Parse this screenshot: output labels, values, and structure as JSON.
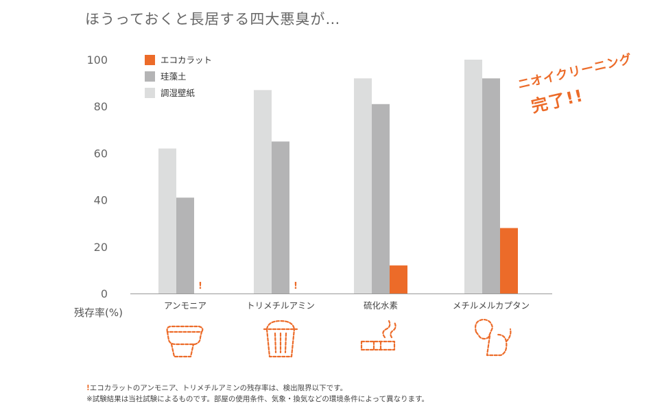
{
  "title": "ほうっておくと長居する四大悪臭が…",
  "stamp": {
    "line1": "ニオイクリーニング",
    "line2": "完了!!"
  },
  "notes": {
    "mark": "!",
    "line1": "エコカラットのアンモニア、トリメチルアミンの残存率は、検出限界以下です。",
    "line2": "※試験結果は当社試験によるものです。部屋の使用条件、気象・換気などの環境条件によって異なります。"
  },
  "chart_data": {
    "type": "bar",
    "ylabel": "残存率(%)",
    "ylim": [
      0,
      100
    ],
    "yticks": [
      0,
      20,
      40,
      60,
      80,
      100
    ],
    "grid": false,
    "legend_position": "top-left",
    "categories": [
      "アンモニア",
      "トリメチルアミン",
      "硫化水素",
      "メチルメルカプタン"
    ],
    "category_icons": [
      "toilet-icon",
      "trash-bin-icon",
      "cigarette-icon",
      "dog-icon"
    ],
    "series": [
      {
        "name": "調湿壁紙",
        "color": "#dcdddd",
        "values": [
          62,
          87,
          92,
          100
        ]
      },
      {
        "name": "珪藻土",
        "color": "#b4b4b5",
        "values": [
          41,
          65,
          81,
          92
        ]
      },
      {
        "name": "エコカラット",
        "color": "#ec6b29",
        "values": [
          0,
          0,
          12,
          28
        ]
      }
    ],
    "legend_order": [
      "エコカラット",
      "珪藻土",
      "調湿壁紙"
    ],
    "annotations": [
      {
        "category": "アンモニア",
        "series": "エコカラット",
        "text": "!"
      },
      {
        "category": "トリメチルアミン",
        "series": "エコカラット",
        "text": "!"
      }
    ]
  }
}
